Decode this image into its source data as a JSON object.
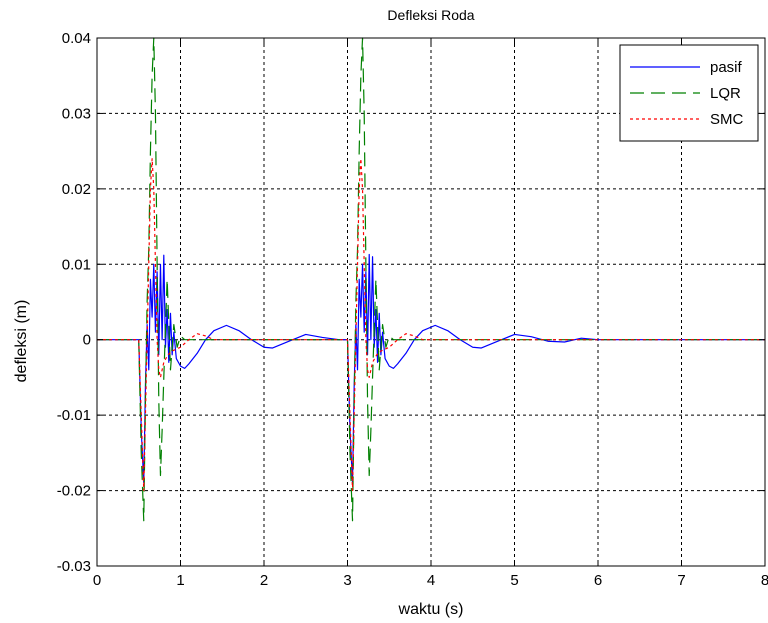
{
  "chart_data": {
    "type": "line",
    "title": "Defleksi Roda",
    "xlabel": "waktu (s)",
    "ylabel": "defleksi (m)",
    "xlim": [
      0,
      8
    ],
    "ylim": [
      -0.03,
      0.04
    ],
    "xticks": [
      0,
      1,
      2,
      3,
      4,
      5,
      6,
      7,
      8
    ],
    "xtick_labels": [
      "0",
      "1",
      "2",
      "3",
      "4",
      "5",
      "6",
      "7",
      "8"
    ],
    "yticks": [
      -0.03,
      -0.02,
      -0.01,
      0,
      0.01,
      0.02,
      0.03,
      0.04
    ],
    "ytick_labels": [
      "-0.03",
      "-0.02",
      "-0.01",
      "0",
      "0.01",
      "0.02",
      "0.03",
      "0.04"
    ],
    "grid": true,
    "legend_position": "top-right",
    "series": [
      {
        "name": "pasif",
        "color": "#0000ff",
        "style": "solid",
        "x": [
          0,
          0.5,
          0.53,
          0.56,
          0.58,
          0.6,
          0.62,
          0.64,
          0.66,
          0.68,
          0.7,
          0.72,
          0.74,
          0.76,
          0.78,
          0.8,
          0.82,
          0.84,
          0.86,
          0.88,
          0.9,
          0.92,
          0.95,
          1.0,
          1.05,
          1.1,
          1.2,
          1.3,
          1.4,
          1.55,
          1.7,
          1.85,
          2.0,
          2.1,
          2.3,
          2.5,
          2.7,
          2.9,
          3.0,
          3.03,
          3.06,
          3.08,
          3.1,
          3.12,
          3.14,
          3.16,
          3.18,
          3.2,
          3.22,
          3.24,
          3.26,
          3.28,
          3.3,
          3.32,
          3.34,
          3.36,
          3.38,
          3.4,
          3.42,
          3.45,
          3.5,
          3.55,
          3.6,
          3.7,
          3.8,
          3.9,
          4.05,
          4.2,
          4.35,
          4.5,
          4.6,
          4.8,
          5.0,
          5.2,
          5.4,
          5.6,
          5.8,
          6.0,
          8.0
        ],
        "y": [
          0,
          0,
          -0.012,
          -0.019,
          -0.006,
          0.002,
          -0.004,
          0.008,
          0.003,
          0.01,
          0.001,
          0.009,
          -0.002,
          0.01,
          0.0,
          0.0112,
          -0.001,
          0.004,
          -0.003,
          0.0035,
          -0.002,
          0.001,
          -0.0025,
          -0.0035,
          -0.0038,
          -0.0032,
          -0.0018,
          0.0,
          0.0012,
          0.0019,
          0.0012,
          0.0,
          -0.001,
          -0.0011,
          -0.0002,
          0.0007,
          0.0003,
          0.0,
          0.0,
          -0.012,
          -0.019,
          -0.006,
          0.002,
          -0.004,
          0.008,
          0.003,
          0.01,
          0.001,
          0.009,
          -0.002,
          0.0113,
          0.0,
          0.011,
          -0.001,
          0.004,
          -0.003,
          0.0035,
          -0.002,
          0.001,
          -0.0025,
          -0.0035,
          -0.0038,
          -0.0032,
          -0.0018,
          0.0,
          0.0012,
          0.0019,
          0.0012,
          0.0,
          -0.001,
          -0.0011,
          -0.0002,
          0.0007,
          0.0004,
          -0.0002,
          -0.0003,
          0.0002,
          0.0,
          0.0
        ]
      },
      {
        "name": "LQR",
        "color": "#008000",
        "style": "dashed",
        "x": [
          0,
          0.5,
          0.53,
          0.56,
          0.58,
          0.6,
          0.62,
          0.64,
          0.66,
          0.68,
          0.7,
          0.72,
          0.74,
          0.76,
          0.78,
          0.8,
          0.84,
          0.88,
          0.92,
          0.96,
          1.0,
          1.05,
          3.0,
          3.03,
          3.06,
          3.08,
          3.1,
          3.12,
          3.14,
          3.16,
          3.18,
          3.2,
          3.22,
          3.24,
          3.26,
          3.28,
          3.3,
          3.34,
          3.38,
          3.42,
          3.46,
          3.5,
          3.55,
          8.0
        ],
        "y": [
          0,
          0,
          -0.015,
          -0.024,
          -0.008,
          0.005,
          0.012,
          0.025,
          0.035,
          0.04,
          0.03,
          0.01,
          -0.008,
          -0.018,
          -0.012,
          -0.005,
          0.008,
          -0.004,
          0.002,
          -0.001,
          0.0005,
          0.0,
          0.0,
          -0.015,
          -0.024,
          -0.008,
          0.005,
          0.012,
          0.025,
          0.035,
          0.04,
          0.03,
          0.01,
          -0.008,
          -0.018,
          -0.012,
          -0.005,
          0.008,
          -0.004,
          0.002,
          -0.001,
          0.0005,
          0.0,
          0.0
        ]
      },
      {
        "name": "SMC",
        "color": "#ff0000",
        "style": "dotted",
        "x": [
          0,
          0.5,
          0.53,
          0.56,
          0.58,
          0.6,
          0.62,
          0.64,
          0.66,
          0.68,
          0.7,
          0.72,
          0.74,
          0.76,
          0.8,
          0.85,
          0.9,
          1.0,
          1.1,
          1.2,
          1.3,
          1.4,
          3.0,
          3.03,
          3.06,
          3.08,
          3.1,
          3.12,
          3.14,
          3.16,
          3.18,
          3.2,
          3.22,
          3.24,
          3.26,
          3.3,
          3.35,
          3.4,
          3.5,
          3.6,
          3.7,
          3.8,
          3.9,
          8.0
        ],
        "y": [
          0,
          0,
          -0.01,
          -0.02,
          -0.01,
          0.0,
          0.01,
          0.02,
          0.024,
          0.02,
          0.01,
          0.0,
          -0.004,
          -0.005,
          -0.003,
          -0.002,
          -0.0015,
          -0.001,
          0.0,
          0.0008,
          0.0005,
          0.0,
          0.0,
          -0.01,
          -0.02,
          -0.01,
          0.0,
          0.01,
          0.02,
          0.024,
          0.02,
          0.01,
          0.0,
          -0.004,
          -0.005,
          -0.003,
          -0.002,
          -0.0015,
          -0.001,
          0.0,
          0.0008,
          0.0005,
          0.0,
          0.0
        ]
      }
    ]
  }
}
